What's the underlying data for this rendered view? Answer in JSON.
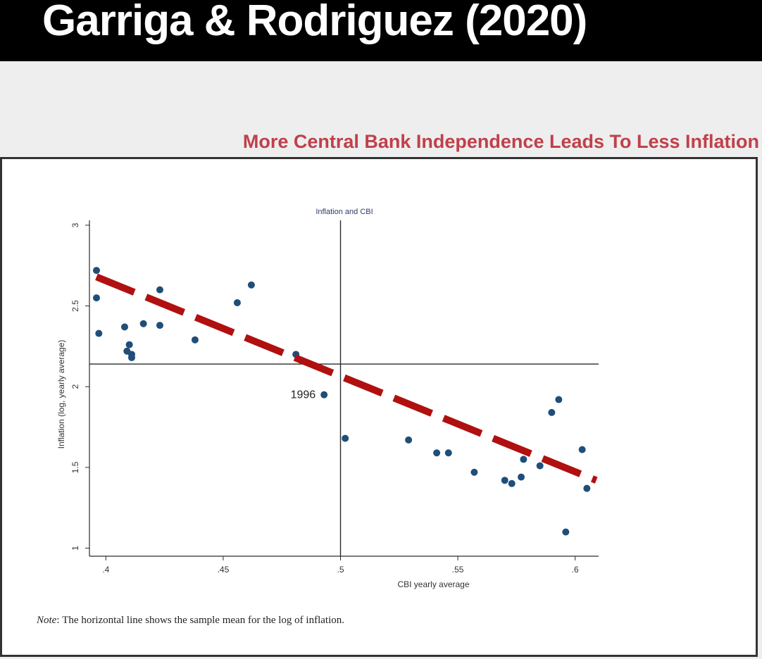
{
  "slide": {
    "title": "Garriga & Rodriguez (2020)",
    "subtitle": "More Central Bank Independence Leads To Less Inflation",
    "note_label": "Note",
    "note_text": "The horizontal line shows the sample mean for the log of inflation."
  },
  "chart_data": {
    "type": "scatter",
    "title": "Inflation and CBI",
    "xlabel": "CBI yearly average",
    "ylabel": "Inflation (log, yearly average)",
    "xlim": [
      0.393,
      0.61
    ],
    "ylim": [
      0.95,
      3.03
    ],
    "xticks": [
      0.4,
      0.45,
      0.5,
      0.55,
      0.6
    ],
    "xtick_labels": [
      ".4",
      ".45",
      ".5",
      ".55",
      ".6"
    ],
    "yticks": [
      1,
      1.5,
      2,
      2.5,
      3
    ],
    "ytick_labels": [
      "1",
      "1.5",
      "2",
      "2.5",
      "3"
    ],
    "points": [
      {
        "x": 0.396,
        "y": 2.72
      },
      {
        "x": 0.396,
        "y": 2.55
      },
      {
        "x": 0.397,
        "y": 2.33
      },
      {
        "x": 0.408,
        "y": 2.37
      },
      {
        "x": 0.409,
        "y": 2.22
      },
      {
        "x": 0.41,
        "y": 2.26
      },
      {
        "x": 0.411,
        "y": 2.2
      },
      {
        "x": 0.411,
        "y": 2.18
      },
      {
        "x": 0.416,
        "y": 2.39
      },
      {
        "x": 0.423,
        "y": 2.6
      },
      {
        "x": 0.423,
        "y": 2.38
      },
      {
        "x": 0.438,
        "y": 2.29
      },
      {
        "x": 0.456,
        "y": 2.52
      },
      {
        "x": 0.462,
        "y": 2.63
      },
      {
        "x": 0.481,
        "y": 2.2
      },
      {
        "x": 0.493,
        "y": 1.95
      },
      {
        "x": 0.502,
        "y": 1.68
      },
      {
        "x": 0.529,
        "y": 1.67
      },
      {
        "x": 0.541,
        "y": 1.59
      },
      {
        "x": 0.546,
        "y": 1.59
      },
      {
        "x": 0.557,
        "y": 1.47
      },
      {
        "x": 0.57,
        "y": 1.42
      },
      {
        "x": 0.573,
        "y": 1.4
      },
      {
        "x": 0.577,
        "y": 1.44
      },
      {
        "x": 0.578,
        "y": 1.55
      },
      {
        "x": 0.585,
        "y": 1.51
      },
      {
        "x": 0.59,
        "y": 1.84
      },
      {
        "x": 0.593,
        "y": 1.92
      },
      {
        "x": 0.596,
        "y": 1.1
      },
      {
        "x": 0.603,
        "y": 1.61
      },
      {
        "x": 0.605,
        "y": 1.37
      }
    ],
    "point_annotation": {
      "label": "1996",
      "x": 0.493,
      "y": 1.95
    },
    "mean_line_y": 2.14,
    "vertical_line_x": 0.5,
    "fit_line": {
      "x1": 0.396,
      "y1": 2.68,
      "x2": 0.609,
      "y2": 1.42,
      "color": "#b01010",
      "style": "dashed"
    },
    "point_color": "#1f4e79",
    "axis_color": "#2b2b2b"
  }
}
